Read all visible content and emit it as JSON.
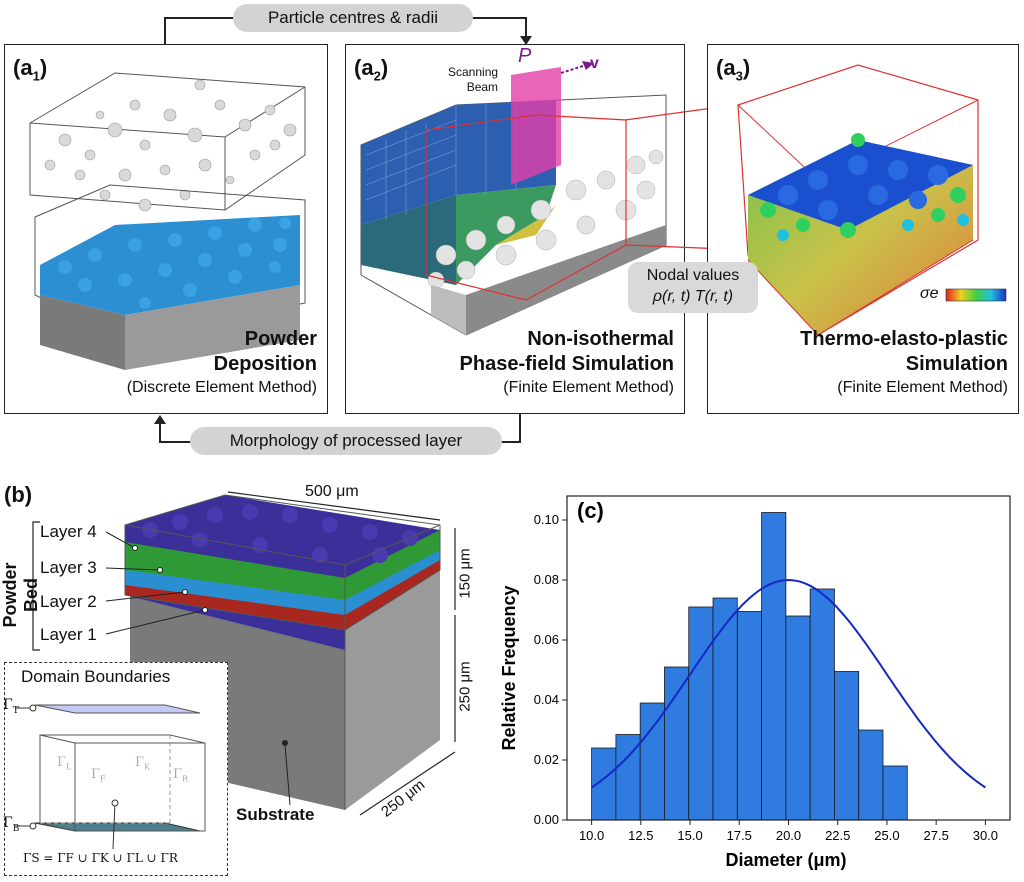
{
  "top": {
    "flow_top": "Particle centres & radii",
    "flow_bottom": "Morphology of processed layer",
    "nodal_line1": "Nodal values",
    "nodal_line2": "ρ(r, t)  T(r, t)",
    "beam_label": "Scanning\nBeam",
    "beam_power": "P",
    "beam_velocity": "v",
    "sigma_label": "σe",
    "panels": [
      {
        "label": "a",
        "sub": "1",
        "title1": "Powder",
        "title2": "Deposition",
        "method": "(Discrete Element Method)"
      },
      {
        "label": "a",
        "sub": "2",
        "title1": "Non-isothermal",
        "title2": "Phase-field Simulation",
        "method": "(Finite Element Method)"
      },
      {
        "label": "a",
        "sub": "3",
        "title1": "Thermo-elasto-plastic",
        "title2": "Simulation",
        "method": "(Finite Element Method)"
      }
    ]
  },
  "b": {
    "label": "(b)",
    "powder_bed": "Powder Bed",
    "layers": [
      "Layer 4",
      "Layer 3",
      "Layer 2",
      "Layer 1"
    ],
    "dim_width": "500 μm",
    "dim_powder": "150 μm",
    "dim_substrate": "250 μm",
    "dim_depth": "250 μm",
    "substrate": "Substrate",
    "domain_title": "Domain Boundaries",
    "gamma_T": "Γ",
    "gamma_T_sub": "T",
    "gamma_B": "Γ",
    "gamma_B_sub": "B",
    "gamma_L": "Γ",
    "gamma_L_sub": "L",
    "gamma_F": "Γ",
    "gamma_F_sub": "F",
    "gamma_K": "Γ",
    "gamma_K_sub": "K",
    "gamma_R": "Γ",
    "gamma_R_sub": "R",
    "gamma_S_eq": "ΓS = ΓF ∪ ΓK ∪ ΓL ∪ ΓR"
  },
  "colors": {
    "layer4": "#3b2f9a",
    "layer3": "#2f9a35",
    "layer2": "#2a8fd0",
    "layer1": "#a8281f",
    "powder": "#2b8fd2",
    "substrate": "#8e8e8e",
    "bar": "#2f7be0",
    "curve": "#1428c8"
  },
  "chart_data": {
    "type": "bar",
    "label": "(c)",
    "xlabel": "Diameter (μm)",
    "ylabel": "Relative Frequency",
    "xlim": [
      8.75,
      31.25
    ],
    "ylim": [
      0,
      0.108
    ],
    "x_ticks": [
      "10.0",
      "12.5",
      "15.0",
      "17.5",
      "20.0",
      "22.5",
      "25.0",
      "27.5",
      "30.0"
    ],
    "y_ticks": [
      "0.00",
      "0.02",
      "0.04",
      "0.06",
      "0.08",
      "0.10"
    ],
    "bin_start": 10.0,
    "bin_width": 1.2333,
    "values": [
      0.024,
      0.0285,
      0.039,
      0.051,
      0.071,
      0.074,
      0.0695,
      0.1025,
      0.068,
      0.077,
      0.0495,
      0.03,
      0.018
    ],
    "fit": {
      "type": "normal",
      "mean": 20.0,
      "peak": 0.08,
      "sigma": 5.0
    }
  }
}
